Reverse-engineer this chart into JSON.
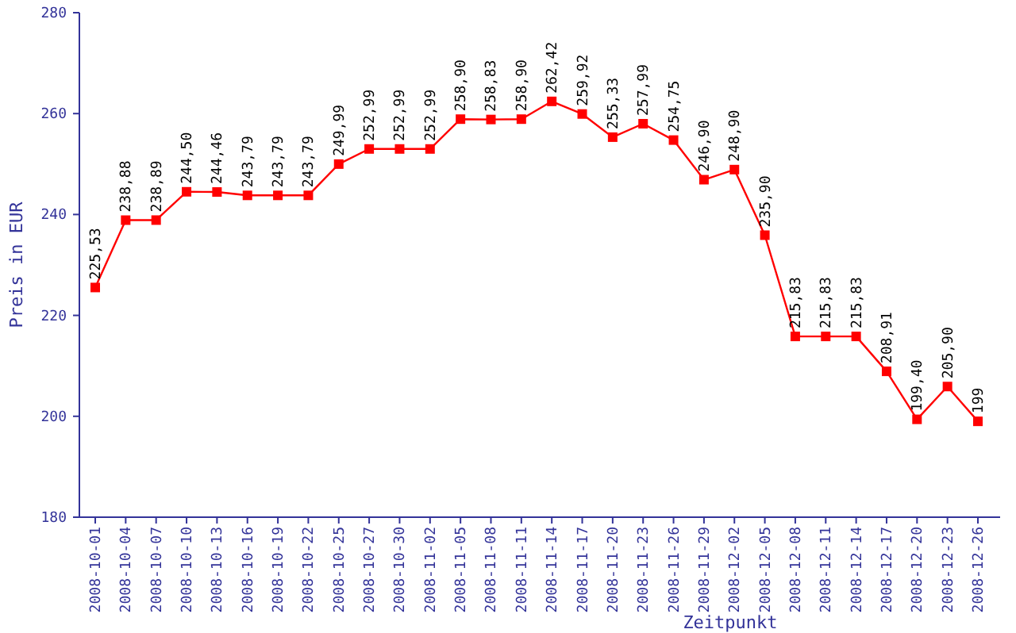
{
  "chart_data": {
    "type": "line",
    "xlabel": "Zeitpunkt",
    "ylabel": "Preis in EUR",
    "categories": [
      "2008-10-01",
      "2008-10-04",
      "2008-10-07",
      "2008-10-10",
      "2008-10-13",
      "2008-10-16",
      "2008-10-19",
      "2008-10-22",
      "2008-10-25",
      "2008-10-27",
      "2008-10-30",
      "2008-11-02",
      "2008-11-05",
      "2008-11-08",
      "2008-11-11",
      "2008-11-14",
      "2008-11-17",
      "2008-11-20",
      "2008-11-23",
      "2008-11-26",
      "2008-11-29",
      "2008-12-02",
      "2008-12-05",
      "2008-12-08",
      "2008-12-11",
      "2008-12-14",
      "2008-12-17",
      "2008-12-20",
      "2008-12-23",
      "2008-12-26"
    ],
    "series": [
      {
        "color": "#ff0000",
        "values": [
          225.53,
          238.88,
          238.89,
          244.5,
          244.46,
          243.79,
          243.79,
          243.79,
          249.99,
          252.99,
          252.99,
          252.99,
          258.9,
          258.83,
          258.9,
          262.42,
          259.92,
          255.33,
          257.99,
          254.75,
          246.9,
          248.9,
          235.9,
          215.83,
          215.83,
          215.83,
          208.91,
          199.4,
          205.9,
          199
        ],
        "value_labels": [
          "225,53",
          "238,88",
          "238,89",
          "244,50",
          "244,46",
          "243,79",
          "243,79",
          "243,79",
          "249,99",
          "252,99",
          "252,99",
          "252,99",
          "258,90",
          "258,83",
          "258,90",
          "262,42",
          "259,92",
          "255,33",
          "257,99",
          "254,75",
          "246,90",
          "248,90",
          "235,90",
          "215,83",
          "215,83",
          "215,83",
          "208,91",
          "199,40",
          "205,90",
          "199"
        ]
      }
    ],
    "ylim": [
      180,
      280
    ],
    "yticks": [
      180,
      200,
      220,
      240,
      260,
      280
    ],
    "grid": false,
    "marker": "square",
    "line_style": "solid"
  }
}
